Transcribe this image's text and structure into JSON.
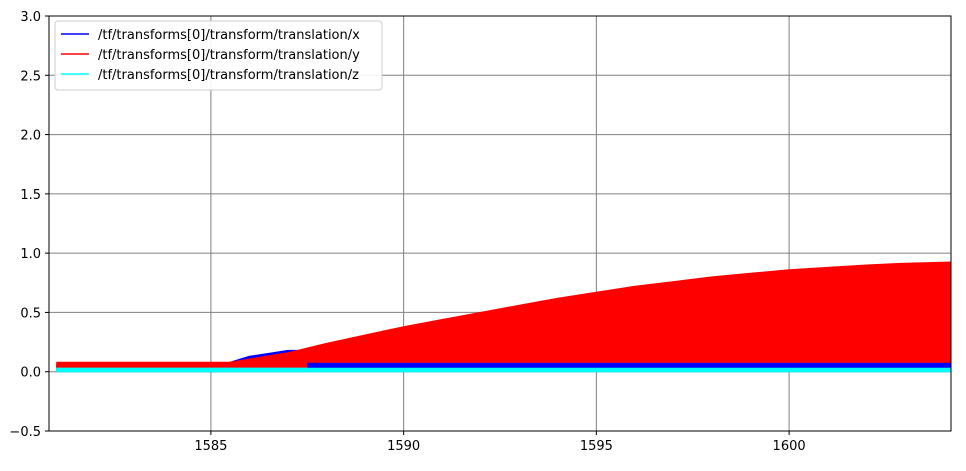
{
  "chart_data": {
    "type": "area",
    "title": "",
    "xlabel": "",
    "ylabel": "",
    "xlim": [
      1580.8,
      1604.2
    ],
    "ylim": [
      -0.5,
      3.0
    ],
    "grid": true,
    "legend_position": "top-left",
    "x_ticks": [
      1585,
      1590,
      1595,
      1600
    ],
    "x_tick_labels": [
      "1585",
      "1590",
      "1595",
      "1600"
    ],
    "y_ticks": [
      -0.5,
      0.0,
      0.5,
      1.0,
      1.5,
      2.0,
      2.5,
      3.0
    ],
    "y_tick_labels": [
      "−0.5",
      "0.0",
      "0.5",
      "1.0",
      "1.5",
      "2.0",
      "2.5",
      "3.0"
    ],
    "series": [
      {
        "name": "/tf/transforms[0]/transform/translation/x",
        "color": "#0000ff",
        "x": [
          1581,
          1585.3,
          1586,
          1587,
          1587.5
        ],
        "y_low": [
          0.0,
          0.0,
          0.0,
          0.0,
          0.0
        ],
        "y_high": [
          0.06,
          0.06,
          0.13,
          0.18,
          0.18
        ]
      },
      {
        "name": "/tf/transforms[0]/transform/translation/y",
        "color": "#ff0000",
        "x": [
          1581,
          1585.5,
          1587,
          1588,
          1589,
          1590,
          1591,
          1592,
          1593,
          1594,
          1595,
          1596,
          1597,
          1598,
          1599,
          1600,
          1601,
          1602,
          1603,
          1604.2
        ],
        "y_low": [
          0.0,
          0.0,
          0.0,
          0.0,
          0.0,
          0.0,
          0.0,
          0.0,
          0.0,
          0.0,
          0.0,
          0.0,
          0.0,
          0.0,
          0.0,
          0.0,
          0.0,
          0.0,
          0.0,
          0.0
        ],
        "y_high": [
          0.08,
          0.08,
          0.16,
          0.24,
          0.31,
          0.38,
          0.44,
          0.5,
          0.56,
          0.62,
          0.67,
          0.72,
          0.76,
          0.8,
          0.83,
          0.86,
          0.88,
          0.9,
          0.915,
          0.925
        ]
      },
      {
        "name": "/tf/transforms[0]/transform/translation/z",
        "color": "#00ffff",
        "x": [
          1581,
          1604.2
        ],
        "y_low": [
          0.0,
          0.0
        ],
        "y_high": [
          0.03,
          0.03
        ]
      }
    ],
    "overlay_band": {
      "color": "#0000ff",
      "x_start": 1587.5,
      "x_end": 1604.2,
      "y_low": 0.03,
      "y_high": 0.075
    }
  }
}
